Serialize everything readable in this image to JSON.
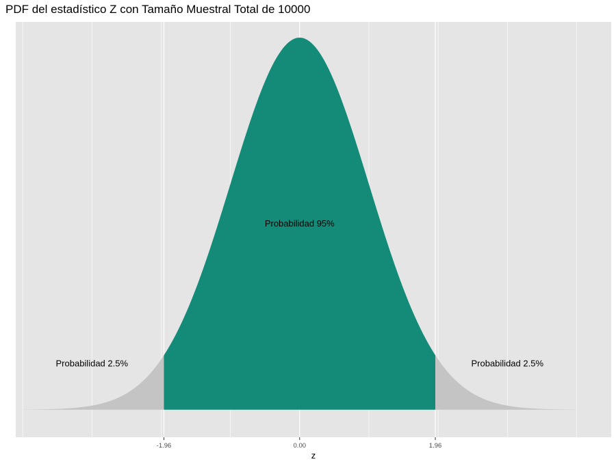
{
  "chart_data": {
    "type": "area",
    "title": "PDF del estadístico Z con Tamaño Muestral Total de 10000",
    "xlabel": "z",
    "ylabel": "",
    "xlim": [
      -4.1,
      4.5
    ],
    "x_range": [
      -4,
      4
    ],
    "ylim": [
      -0.0295,
      0.4158
    ],
    "grid": true,
    "legend": "none",
    "x_ticks": [
      {
        "value": -1.96,
        "label": "-1.96"
      },
      {
        "value": 0,
        "label": "0.00"
      },
      {
        "value": 1.96,
        "label": "1.96"
      }
    ],
    "minor_grid_x": [
      -4,
      -3,
      -2,
      -1,
      1,
      2,
      3,
      4
    ],
    "major_grid_x": [
      -1.96,
      0,
      1.96
    ],
    "series": [
      {
        "region": "left_tail",
        "x_from": -4,
        "x_to": -1.96,
        "color": "#c4c4c4"
      },
      {
        "region": "center",
        "x_from": -1.96,
        "x_to": 1.96,
        "color": "#148b78"
      },
      {
        "region": "right_tail",
        "x_from": 1.96,
        "x_to": 4,
        "color": "#c4c4c4"
      }
    ],
    "annotations": [
      {
        "text": "Probabilidad 2.5%",
        "x": -3,
        "y": 0.05
      },
      {
        "text": "Probabilidad 95%",
        "x": 0,
        "y": 0.2
      },
      {
        "text": "Probabilidad 2.5%",
        "x": 3,
        "y": 0.05
      }
    ],
    "colors": {
      "panel_bg": "#e5e5e5",
      "grid": "#ffffff",
      "center_fill": "#148b78",
      "tail_fill": "#c4c4c4"
    }
  }
}
